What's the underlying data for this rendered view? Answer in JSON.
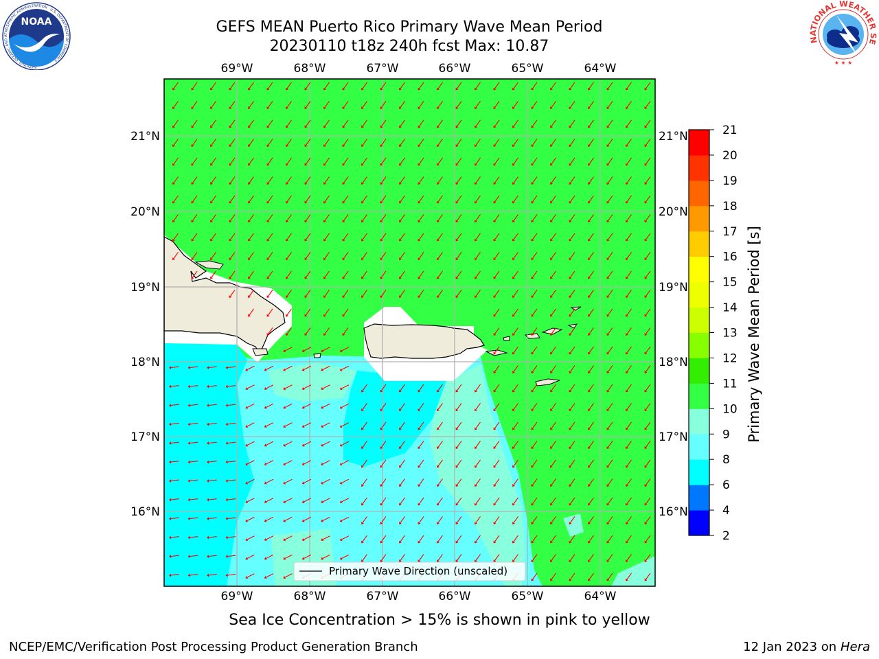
{
  "title": {
    "line1": "GEFS MEAN Puerto Rico Primary Wave Mean Period",
    "line2": "20230110 t18z 240h fcst   Max: 10.87"
  },
  "map": {
    "lon_ticks": [
      "69°W",
      "68°W",
      "67°W",
      "66°W",
      "65°W",
      "64°W"
    ],
    "lat_ticks": [
      "21°N",
      "20°N",
      "19°N",
      "18°N",
      "17°N",
      "16°N"
    ],
    "legend_label": "Primary Wave Direction (unscaled)",
    "colors": {
      "green": "#33ff44",
      "cyan": "#00ffff",
      "light_cyan": "#66ffff",
      "aqua": "#88ffdd",
      "land": "#efecdc",
      "arrow": "#ff0000"
    }
  },
  "colorbar": {
    "label": "Primary Wave Mean Period [s]",
    "ticks": [
      "2",
      "4",
      "6",
      "8",
      "9",
      "10",
      "11",
      "12",
      "13",
      "14",
      "15",
      "16",
      "17",
      "18",
      "19",
      "20",
      "21"
    ],
    "colors": [
      "#0000ff",
      "#0077ff",
      "#00ffff",
      "#66ffff",
      "#88ffdd",
      "#33ff44",
      "#33ee00",
      "#88ff00",
      "#ccff00",
      "#eeff00",
      "#ffff00",
      "#ffcc00",
      "#ff9900",
      "#ff6600",
      "#ff3300",
      "#ff0000"
    ]
  },
  "sea_ice_note": "Sea Ice Concentration > 15% is shown in pink to yellow",
  "footer": {
    "left": "NCEP/EMC/Verification Post Processing Product Generation Branch",
    "right_date": "12 Jan 2023 on ",
    "right_host": "Hera"
  },
  "logos": {
    "noaa_text": "NOAA",
    "noaa_ring": "NATIONAL OCEANIC AND ATMOSPHERIC ADMINISTRATION · U.S. DEPARTMENT OF COMMERCE",
    "nws_ring": "NATIONAL WEATHER SERVICE"
  }
}
